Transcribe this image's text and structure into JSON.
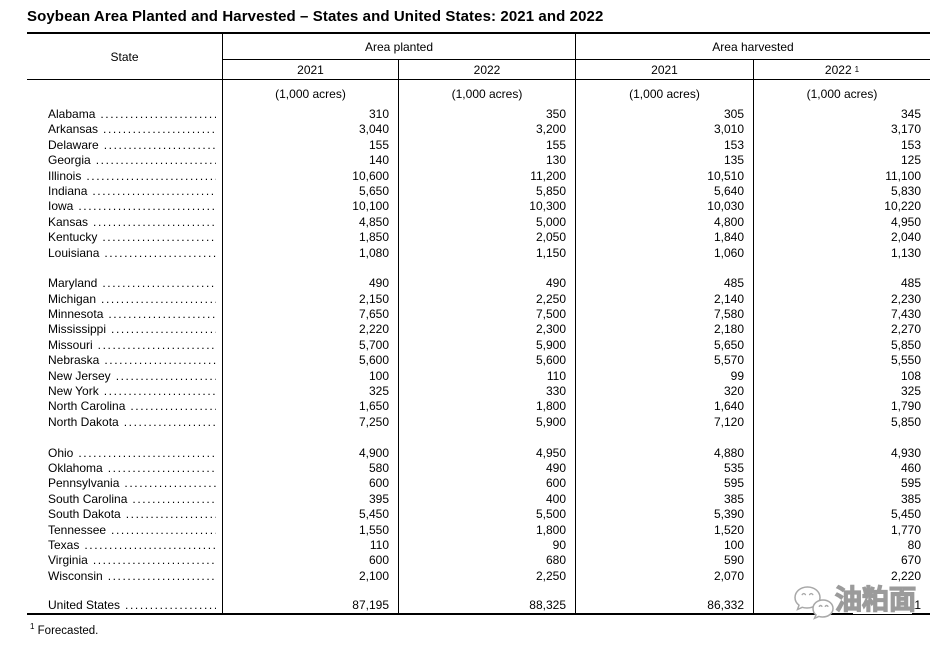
{
  "title": "Soybean Area Planted and Harvested – States and United States: 2021 and 2022",
  "header": {
    "state": "State",
    "area_planted": "Area planted",
    "area_harvested": "Area harvested",
    "planted_2021": "2021",
    "planted_2022": "2022",
    "harvested_2021": "2021",
    "harvested_2022": "2022",
    "harvested_2022_sup": "1",
    "unit": "(1,000 acres)"
  },
  "row_groups": [
    [
      {
        "state": "Alabama",
        "values": [
          "310",
          "350",
          "305",
          "345"
        ]
      },
      {
        "state": "Arkansas",
        "values": [
          "3,040",
          "3,200",
          "3,010",
          "3,170"
        ]
      },
      {
        "state": "Delaware",
        "values": [
          "155",
          "155",
          "153",
          "153"
        ]
      },
      {
        "state": "Georgia",
        "values": [
          "140",
          "130",
          "135",
          "125"
        ]
      },
      {
        "state": "Illinois",
        "values": [
          "10,600",
          "11,200",
          "10,510",
          "11,100"
        ]
      },
      {
        "state": "Indiana",
        "values": [
          "5,650",
          "5,850",
          "5,640",
          "5,830"
        ]
      },
      {
        "state": "Iowa",
        "values": [
          "10,100",
          "10,300",
          "10,030",
          "10,220"
        ]
      },
      {
        "state": "Kansas",
        "values": [
          "4,850",
          "5,000",
          "4,800",
          "4,950"
        ]
      },
      {
        "state": "Kentucky",
        "values": [
          "1,850",
          "2,050",
          "1,840",
          "2,040"
        ]
      },
      {
        "state": "Louisiana",
        "values": [
          "1,080",
          "1,150",
          "1,060",
          "1,130"
        ]
      }
    ],
    [
      {
        "state": "Maryland",
        "values": [
          "490",
          "490",
          "485",
          "485"
        ]
      },
      {
        "state": "Michigan",
        "values": [
          "2,150",
          "2,250",
          "2,140",
          "2,230"
        ]
      },
      {
        "state": "Minnesota",
        "values": [
          "7,650",
          "7,500",
          "7,580",
          "7,430"
        ]
      },
      {
        "state": "Mississippi",
        "values": [
          "2,220",
          "2,300",
          "2,180",
          "2,270"
        ]
      },
      {
        "state": "Missouri",
        "values": [
          "5,700",
          "5,900",
          "5,650",
          "5,850"
        ]
      },
      {
        "state": "Nebraska",
        "values": [
          "5,600",
          "5,600",
          "5,570",
          "5,550"
        ]
      },
      {
        "state": "New Jersey",
        "values": [
          "100",
          "110",
          "99",
          "108"
        ]
      },
      {
        "state": "New York",
        "values": [
          "325",
          "330",
          "320",
          "325"
        ]
      },
      {
        "state": "North Carolina",
        "values": [
          "1,650",
          "1,800",
          "1,640",
          "1,790"
        ]
      },
      {
        "state": "North Dakota",
        "values": [
          "7,250",
          "5,900",
          "7,120",
          "5,850"
        ]
      }
    ],
    [
      {
        "state": "Ohio",
        "values": [
          "4,900",
          "4,950",
          "4,880",
          "4,930"
        ]
      },
      {
        "state": "Oklahoma",
        "values": [
          "580",
          "490",
          "535",
          "460"
        ]
      },
      {
        "state": "Pennsylvania",
        "values": [
          "600",
          "600",
          "595",
          "595"
        ]
      },
      {
        "state": "South Carolina",
        "values": [
          "395",
          "400",
          "385",
          "385"
        ]
      },
      {
        "state": "South Dakota",
        "values": [
          "5,450",
          "5,500",
          "5,390",
          "5,450"
        ]
      },
      {
        "state": "Tennessee",
        "values": [
          "1,550",
          "1,800",
          "1,520",
          "1,770"
        ]
      },
      {
        "state": "Texas",
        "values": [
          "110",
          "90",
          "100",
          "80"
        ]
      },
      {
        "state": "Virginia",
        "values": [
          "600",
          "680",
          "590",
          "670"
        ]
      },
      {
        "state": "Wisconsin",
        "values": [
          "2,100",
          "2,250",
          "2,070",
          "2,220"
        ]
      }
    ]
  ],
  "us_row": {
    "state": "United States",
    "values": [
      "87,195",
      "88,325",
      "86,332",
      "87,511"
    ]
  },
  "footnote": {
    "sup": "1",
    "text": "Forecasted."
  },
  "watermark": {
    "text": "油粕面",
    "icon": "wechat-icon"
  },
  "colors": {
    "text": "#000000",
    "rule": "#000000",
    "background": "#ffffff",
    "watermark_gray": "#9b9b9b"
  }
}
